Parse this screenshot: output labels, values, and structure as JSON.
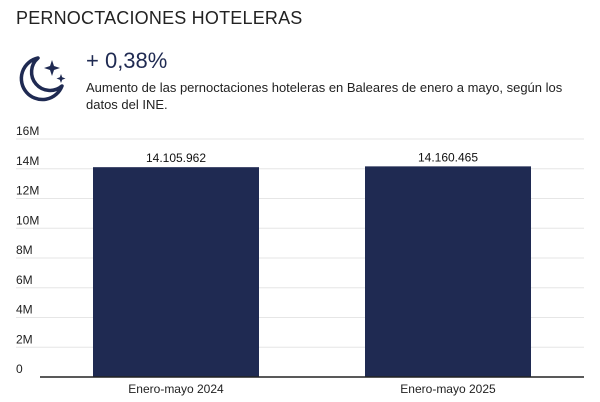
{
  "header": {
    "title": "PERNOCTACIONES HOTELERAS",
    "icon": "moon-stars-icon",
    "change": "+ 0,38%",
    "description": "Aumento de las pernoctaciones hoteleras en Baleares de enero a mayo, según los datos del INE."
  },
  "colors": {
    "bar": "#1f2a52",
    "icon": "#1f2a52",
    "grid": "#e6e6e6",
    "axis": "#222222"
  },
  "chart_data": {
    "type": "bar",
    "categories": [
      "Enero-mayo 2024",
      "Enero-mayo 2025"
    ],
    "values": [
      14105962,
      14160465
    ],
    "data_labels": [
      "14.105.962",
      "14.160.465"
    ],
    "ylim": [
      0,
      16000000
    ],
    "yticks": [
      0,
      2000000,
      4000000,
      6000000,
      8000000,
      10000000,
      12000000,
      14000000,
      16000000
    ],
    "ytick_labels": [
      "0",
      "2M",
      "4M",
      "6M",
      "8M",
      "10M",
      "12M",
      "14M",
      "16M"
    ],
    "grid": true,
    "legend": "none"
  }
}
